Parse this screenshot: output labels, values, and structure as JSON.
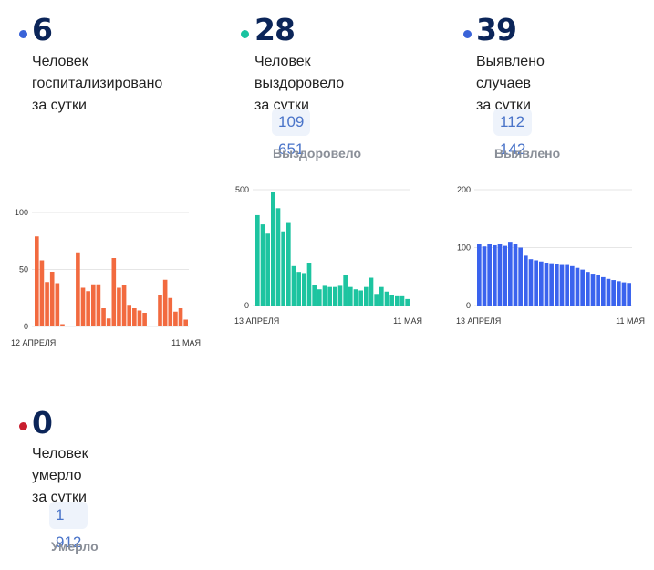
{
  "cards": [
    {
      "value": "6",
      "desc": [
        "Человек",
        "госпитализировано",
        "за сутки"
      ],
      "dot_color": "#3a63d8"
    },
    {
      "value": "28",
      "desc": [
        "Человек выздоровело",
        "за сутки"
      ],
      "dot_color": "#19c3a0",
      "total": "109 651",
      "total_label": "Выздоровело"
    },
    {
      "value": "39",
      "desc": [
        "Выявлено случаев",
        "за сутки"
      ],
      "dot_color": "#3a63d8",
      "total": "112 142",
      "total_label": "Выявлено"
    },
    {
      "value": "0",
      "desc": [
        "Человек умерло",
        "за сутки"
      ],
      "dot_color": "#c81e2e",
      "total": "1 912",
      "total_label": "Умерло"
    }
  ],
  "chart_data": [
    {
      "type": "bar",
      "color": "#f26a3f",
      "ylim": [
        0,
        100
      ],
      "yticks": [
        "0",
        "50",
        "100"
      ],
      "ytick_values": [
        0,
        50,
        100
      ],
      "x_start_label": "12 АПРЕЛЯ",
      "x_end_label": "11 МАЯ",
      "values": [
        79,
        58,
        39,
        48,
        38,
        2,
        0,
        0,
        65,
        34,
        31,
        37,
        37,
        16,
        7,
        60,
        34,
        36,
        19,
        16,
        14,
        12,
        0,
        0,
        28,
        41,
        25,
        13,
        16,
        6
      ]
    },
    {
      "type": "bar",
      "color": "#1dc4a0",
      "ylim": [
        0,
        500
      ],
      "yticks": [
        "0",
        "500"
      ],
      "ytick_values": [
        0,
        500
      ],
      "x_start_label": "13 АПРЕЛЯ",
      "x_end_label": "11 МАЯ",
      "values": [
        390,
        350,
        310,
        490,
        420,
        320,
        360,
        170,
        145,
        140,
        185,
        90,
        70,
        85,
        80,
        80,
        85,
        130,
        80,
        70,
        65,
        80,
        120,
        50,
        80,
        60,
        45,
        40,
        40,
        28
      ]
    },
    {
      "type": "bar",
      "color": "#3a63ee",
      "ylim": [
        0,
        200
      ],
      "yticks": [
        "0",
        "100",
        "200"
      ],
      "ytick_values": [
        0,
        100,
        200
      ],
      "x_start_label": "13 АПРЕЛЯ",
      "x_end_label": "11 МАЯ",
      "values": [
        107,
        102,
        106,
        104,
        107,
        103,
        110,
        107,
        100,
        86,
        80,
        78,
        76,
        74,
        73,
        72,
        70,
        70,
        68,
        65,
        62,
        58,
        55,
        52,
        49,
        46,
        44,
        42,
        40,
        39
      ]
    }
  ]
}
